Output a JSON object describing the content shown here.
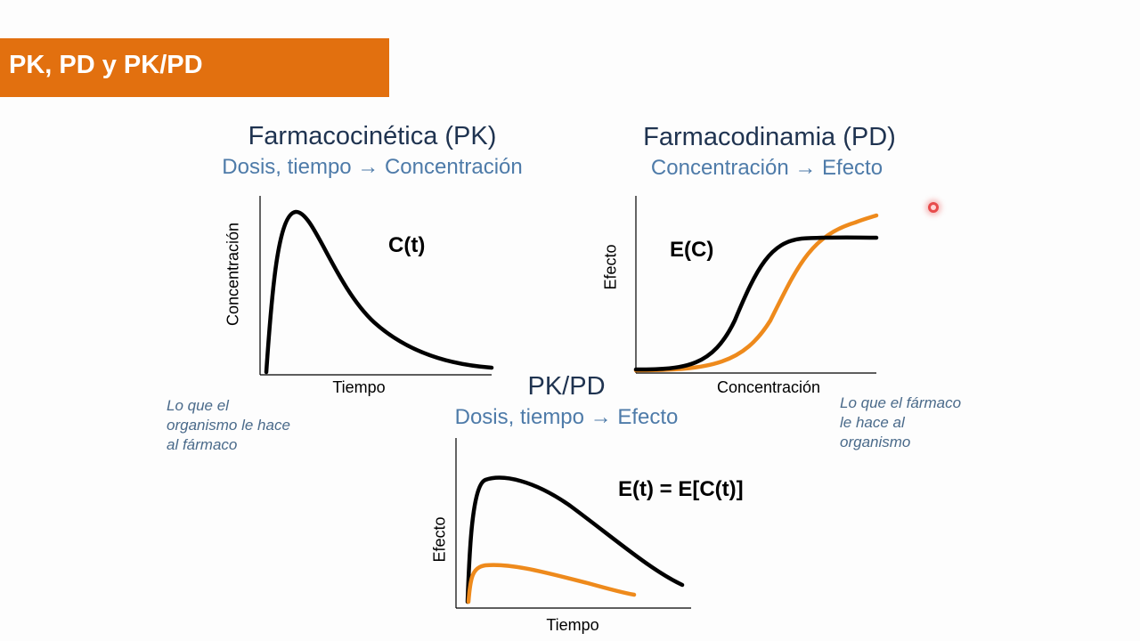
{
  "banner": {
    "title": "PK, PD y PK/PD",
    "color": "#e2700f"
  },
  "pk": {
    "title": "Farmacocinética (PK)",
    "subtitle": "Dosis, tiempo → Concentración",
    "formula": "C(t)",
    "ylabel": "Concentración",
    "xlabel": "Tiempo",
    "note": "Lo que el\norganismo le hace\nal fármaco"
  },
  "pd": {
    "title": "Farmacodinamia (PD)",
    "subtitle": "Concentración → Efecto",
    "formula": "E(C)",
    "ylabel": "Efecto",
    "xlabel": "Concentración",
    "note": "Lo que el fármaco\nle hace al\norganismo"
  },
  "pkpd": {
    "title": "PK/PD",
    "subtitle": "Dosis, tiempo → Efecto",
    "formula": "E(t) = E[C(t)]",
    "ylabel": "Efecto",
    "xlabel": "Tiempo"
  },
  "colors": {
    "curve_primary": "#000000",
    "curve_secondary": "#ee8a1c",
    "title_dark": "#1f3350",
    "subtitle_blue": "#4e7ba9"
  }
}
